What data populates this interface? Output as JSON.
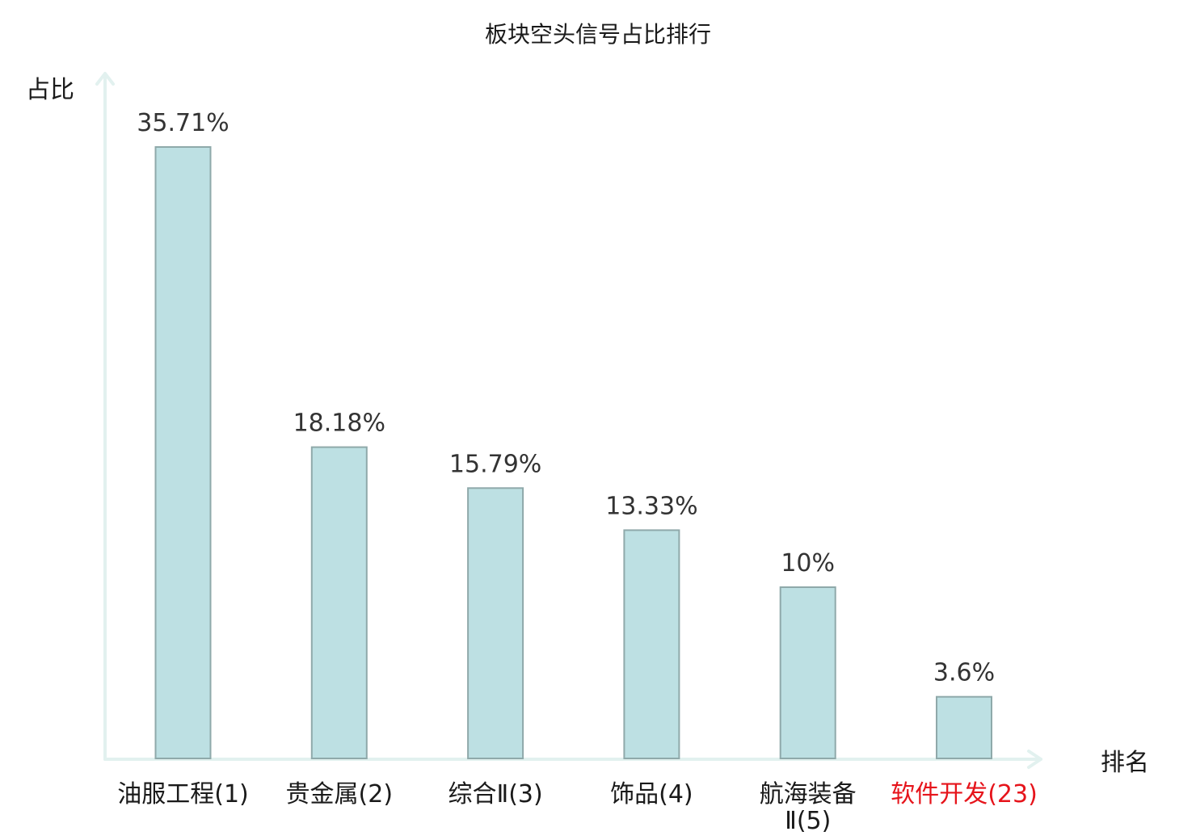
{
  "chart_data": {
    "type": "bar",
    "title": "板块空头信号占比排行",
    "xlabel": "排名",
    "ylabel": "占比",
    "ylim": [
      0,
      40
    ],
    "grid": false,
    "categories": [
      {
        "name": "油服工程",
        "rank": "(1)",
        "highlight": false
      },
      {
        "name": "贵金属",
        "rank": "(2)",
        "highlight": false
      },
      {
        "name": "综合Ⅱ",
        "rank": "(3)",
        "highlight": false
      },
      {
        "name": "饰品",
        "rank": "(4)",
        "highlight": false
      },
      {
        "name": "航海装备",
        "rank": "Ⅱ(5)",
        "highlight": false
      },
      {
        "name": "软件开发",
        "rank": "(23)",
        "highlight": true
      }
    ],
    "values": [
      35.71,
      18.18,
      15.79,
      13.33,
      10,
      3.6
    ],
    "value_labels": [
      "35.71%",
      "18.18%",
      "15.79%",
      "13.33%",
      "10%",
      "3.6%"
    ],
    "colors": {
      "bar_fill": "#bde0e3",
      "bar_stroke": "#8fa9aa",
      "axis": "#e2f1ef",
      "highlight": "#e6141b",
      "text": "#333333"
    }
  }
}
